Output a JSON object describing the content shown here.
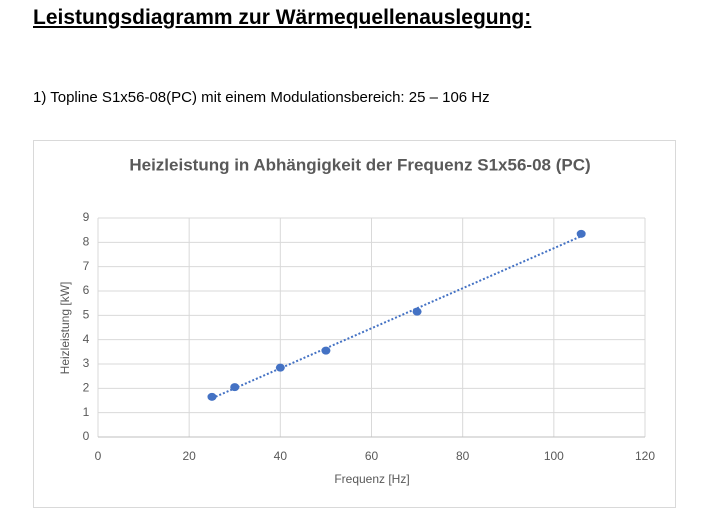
{
  "header": {
    "title": "Leistungsdiagramm zur Wärmequellenauslegung:",
    "subtitle": "1) Topline S1x56-08(PC) mit einem Modulationsbereich: 25 – 106 Hz"
  },
  "chart_data": {
    "type": "scatter",
    "title": "Heizleistung in Abhängigkeit der Frequenz S1x56-08 (PC)",
    "x_label": "Frequenz [Hz]",
    "y_label": "Heizleistung [kW]",
    "x": [
      25,
      30,
      40,
      50,
      70,
      106
    ],
    "values": [
      1.65,
      2.05,
      2.85,
      3.55,
      5.15,
      8.35
    ],
    "color": "#4472c4",
    "trendline": true,
    "xlim": [
      0,
      120
    ],
    "xticks": [
      0,
      20,
      40,
      60,
      80,
      100,
      120
    ],
    "ylim": [
      0,
      9
    ],
    "yticks": [
      0,
      1,
      2,
      3,
      4,
      5,
      6,
      7,
      8,
      9
    ],
    "grid": true
  }
}
